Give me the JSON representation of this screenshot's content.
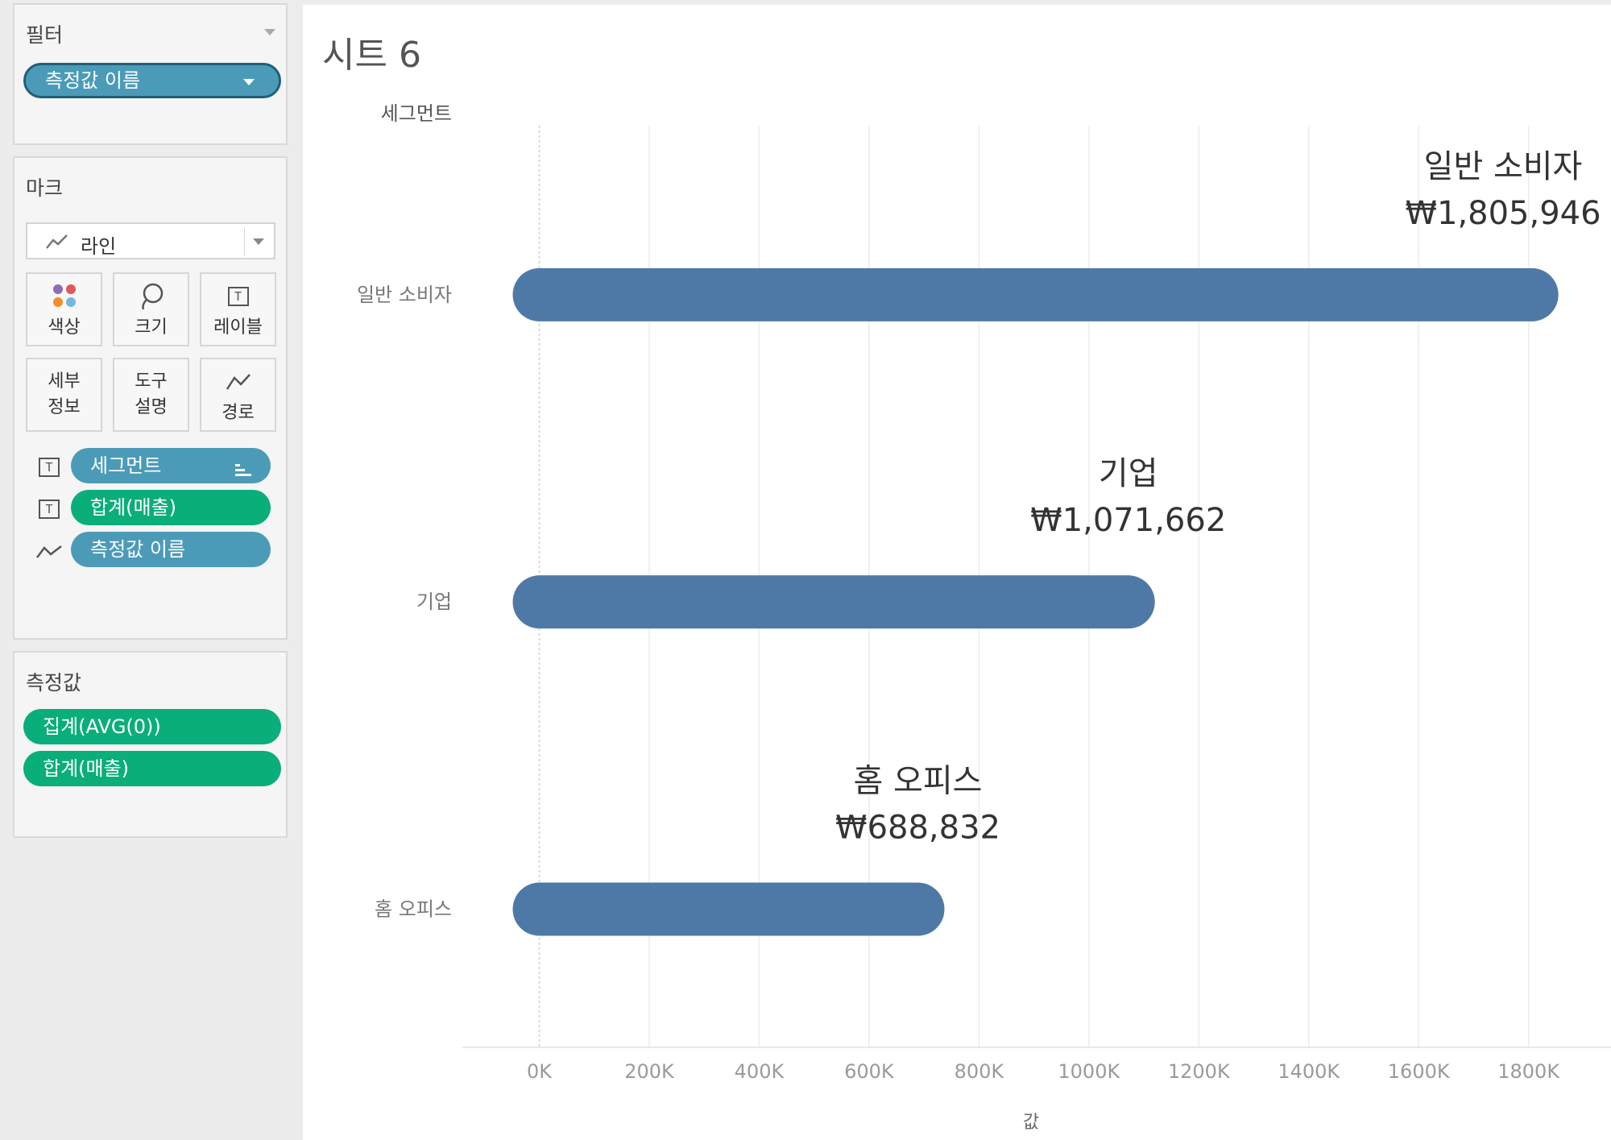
{
  "filters": {
    "title": "필터",
    "pills": [
      {
        "label": "측정값 이름"
      }
    ]
  },
  "marks": {
    "title": "마크",
    "mark_type": "라인",
    "buttons": [
      {
        "label": "색상",
        "icon": "color-dots-icon"
      },
      {
        "label": "크기",
        "icon": "size-lasso-icon"
      },
      {
        "label": "레이블",
        "icon": "label-t-icon"
      },
      {
        "label": "세부\n정보",
        "icon": "none"
      },
      {
        "label": "도구\n설명",
        "icon": "none"
      },
      {
        "label": "경로",
        "icon": "path-line-icon"
      }
    ],
    "fields": [
      {
        "label": "세그먼트",
        "icon": "label-t-icon",
        "color": "blue"
      },
      {
        "label": "합계(매출)",
        "icon": "label-t-icon",
        "color": "green"
      },
      {
        "label": "측정값 이름",
        "icon": "path-line-icon",
        "color": "blue"
      }
    ]
  },
  "measure_values": {
    "title": "측정값",
    "pills": [
      {
        "label": "집계(AVG(0))"
      },
      {
        "label": "합계(매출)"
      }
    ]
  },
  "sheet": {
    "title": "시트 6"
  },
  "colors": {
    "bar": "#4e79a7",
    "pill_blue": "#4b9bb8",
    "pill_green": "#0aae7a"
  },
  "chart_data": {
    "type": "bar",
    "orientation": "horizontal",
    "row_header": "세그먼트",
    "xlabel": "값",
    "categories": [
      "일반 소비자",
      "기업",
      "홈 오피스"
    ],
    "values": [
      1805946,
      1071662,
      688832
    ],
    "value_labels": [
      "₩1,805,946",
      "₩1,071,662",
      "₩688,832"
    ],
    "xticks": [
      0,
      200000,
      400000,
      600000,
      800000,
      1000000,
      1200000,
      1400000,
      1600000,
      1800000
    ],
    "xtick_labels": [
      "0K",
      "200K",
      "400K",
      "600K",
      "800K",
      "1000K",
      "1200K",
      "1400K",
      "1600K",
      "1800K"
    ],
    "xlim": [
      -140000,
      1950000
    ],
    "grid": true
  }
}
